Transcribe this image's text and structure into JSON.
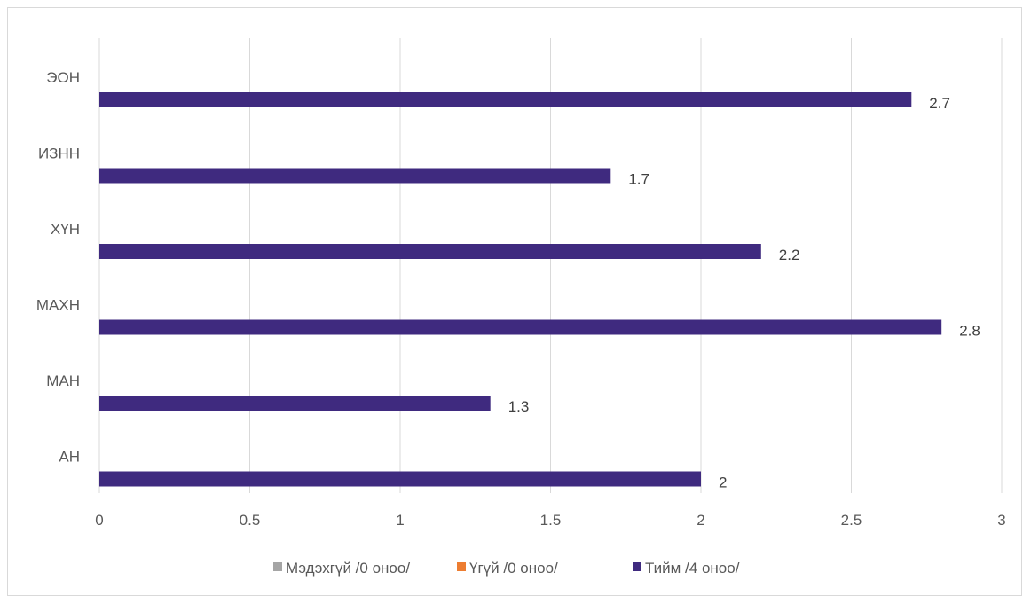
{
  "chart_data": {
    "type": "bar",
    "orientation": "horizontal",
    "categories": [
      "АН",
      "МАН",
      "МАХН",
      "ХҮН",
      "ИЗНН",
      "ЭОН"
    ],
    "series": [
      {
        "name": "Мэдэхгүй /0 оноо/",
        "color": "#a5a5a5",
        "values": [
          0,
          0,
          0,
          0,
          0,
          0
        ]
      },
      {
        "name": "Үгүй /0 оноо/",
        "color": "#ed7d31",
        "values": [
          0,
          0,
          0,
          0,
          0,
          0
        ]
      },
      {
        "name": "Тийм /4 оноо/",
        "color": "#3f2a7f",
        "values": [
          2,
          1.3,
          2.8,
          2.2,
          1.7,
          2.7
        ]
      }
    ],
    "data_labels": [
      "2",
      "1.3",
      "2.8",
      "2.2",
      "1.7",
      "2.7"
    ],
    "x_ticks": [
      "0",
      "0.5",
      "1",
      "1.5",
      "2",
      "2.5",
      "3"
    ],
    "xlim": [
      0,
      3
    ],
    "title": "",
    "xlabel": "",
    "ylabel": "",
    "grid": "vertical",
    "legend_position": "bottom"
  }
}
